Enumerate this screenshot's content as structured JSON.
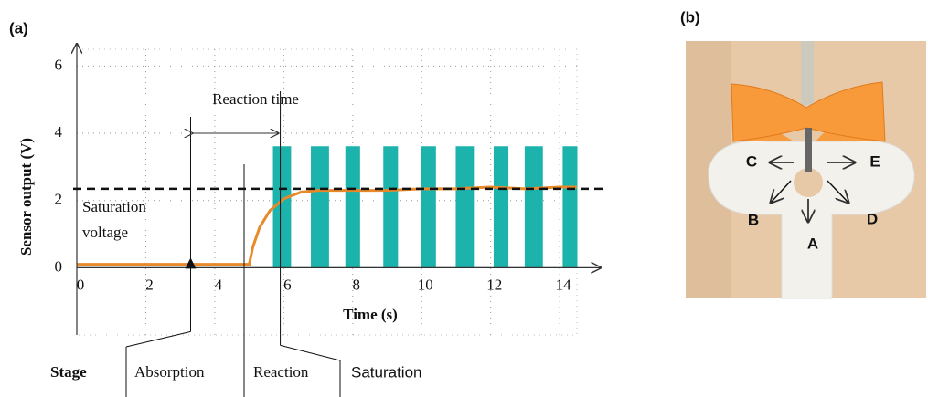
{
  "chart_data": {
    "type": "line",
    "panel_label": "(a)",
    "xlabel": "Time (s)",
    "ylabel": "Sensor output (V)",
    "xlim": [
      0,
      14.5
    ],
    "ylim": [
      -2,
      6.5
    ],
    "xticks": [
      0,
      2,
      4,
      6,
      8,
      10,
      12,
      14
    ],
    "yticks": [
      0,
      2,
      4,
      6
    ],
    "grid": true,
    "series": [
      {
        "color": "#1db3ad",
        "fill": true,
        "x": [
          0,
          5.7,
          5.7,
          6.2,
          6.2,
          6.8,
          6.8,
          7.3,
          7.3,
          7.8,
          7.8,
          8.2,
          8.2,
          8.9,
          8.9,
          9.3,
          9.3,
          10.0,
          10.0,
          10.4,
          10.4,
          11.0,
          11.0,
          11.5,
          11.5,
          12.1,
          12.1,
          12.5,
          12.5,
          13.0,
          13.0,
          13.5,
          13.5,
          14.1,
          14.1,
          14.5
        ],
        "values": [
          0,
          0,
          3.6,
          3.6,
          0,
          0,
          3.6,
          3.6,
          0,
          0,
          3.6,
          3.6,
          0,
          0,
          3.6,
          3.6,
          0,
          0,
          3.6,
          3.6,
          0,
          0,
          3.6,
          3.6,
          0,
          0,
          3.6,
          3.6,
          0,
          0,
          3.6,
          3.6,
          0,
          0,
          3.6,
          3.6
        ]
      },
      {
        "color": "#e88a2a",
        "fill": false,
        "x": [
          0,
          5.0,
          5.1,
          5.3,
          5.6,
          6.0,
          6.5,
          7.0,
          8.0,
          9.0,
          10.0,
          11.0,
          12.0,
          13.0,
          14.0,
          14.5
        ],
        "values": [
          0.1,
          0.1,
          0.6,
          1.2,
          1.7,
          2.05,
          2.25,
          2.3,
          2.3,
          2.3,
          2.35,
          2.35,
          2.4,
          2.35,
          2.4,
          2.4
        ]
      }
    ],
    "saturation_voltage": 2.35,
    "saturation_label": [
      "Saturation",
      "voltage"
    ],
    "reaction_time_label": "Reaction time",
    "reaction_time_span": [
      3.3,
      5.9
    ],
    "stage_label": "Stage",
    "stages": [
      "Absorption",
      "Reaction",
      "Saturation"
    ]
  },
  "photo": {
    "panel_label": "(b)",
    "directions": [
      "C",
      "E",
      "B",
      "D",
      "A"
    ]
  }
}
